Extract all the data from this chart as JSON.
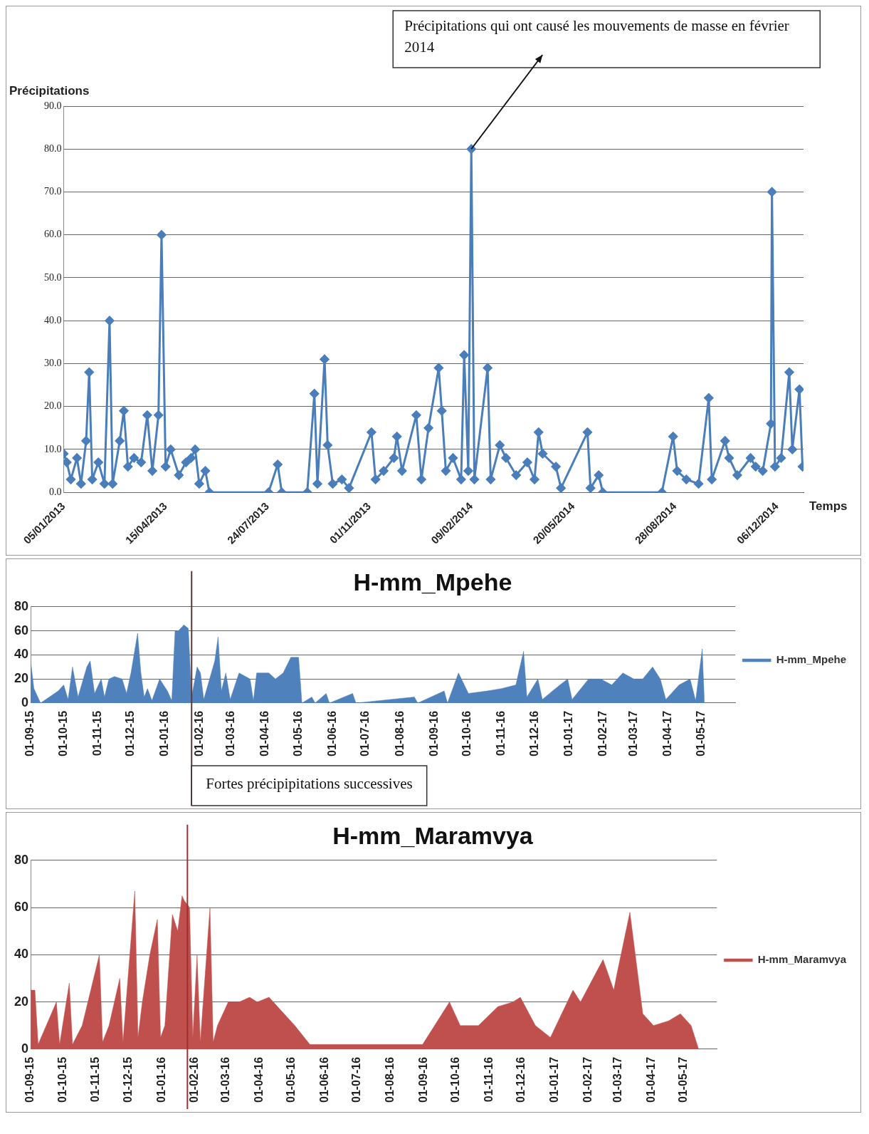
{
  "chart_data": [
    {
      "type": "line",
      "ylabel": "Précipitations",
      "xlabel": "Temps",
      "marker": "diamond",
      "grid": "y",
      "legend": false,
      "annotations": [
        {
          "text": "Précipitations qui ont causé les mouvements de masse en février 2014",
          "x": "2014-02-09",
          "y": 80
        }
      ],
      "xlim": [
        "2013-01-05",
        "2015-01-01"
      ],
      "xticks": [
        {
          "value": "2013-01-05",
          "label": "05/01/2013"
        },
        {
          "value": "2013-04-15",
          "label": "15/04/2013"
        },
        {
          "value": "2013-07-24",
          "label": "24/07/2013"
        },
        {
          "value": "2013-11-01",
          "label": "01/11/2013"
        },
        {
          "value": "2014-02-09",
          "label": "09/02/2014"
        },
        {
          "value": "2014-05-20",
          "label": "20/05/2014"
        },
        {
          "value": "2014-08-28",
          "label": "28/08/2014"
        },
        {
          "value": "2014-12-06",
          "label": "06/12/2014"
        }
      ],
      "ylim": [
        0,
        90
      ],
      "yticks": [
        {
          "value": 0,
          "label": "0.0"
        },
        {
          "value": 10,
          "label": "10.0"
        },
        {
          "value": 20,
          "label": "20.0"
        },
        {
          "value": 30,
          "label": "30.0"
        },
        {
          "value": 40,
          "label": "40.0"
        },
        {
          "value": 50,
          "label": "50.0"
        },
        {
          "value": 60,
          "label": "60.0"
        },
        {
          "value": 70,
          "label": "70.0"
        },
        {
          "value": 80,
          "label": "80.0"
        },
        {
          "value": 90,
          "label": "90.0"
        }
      ],
      "series": [
        {
          "color": "#4a7ebb",
          "x": [
            "2013-01-05",
            "2013-01-08",
            "2013-01-12",
            "2013-01-18",
            "2013-01-22",
            "2013-01-27",
            "2013-01-30",
            "2013-02-02",
            "2013-02-08",
            "2013-02-14",
            "2013-02-19",
            "2013-02-22",
            "2013-03-01",
            "2013-03-05",
            "2013-03-09",
            "2013-03-15",
            "2013-03-22",
            "2013-03-28",
            "2013-04-02",
            "2013-04-08",
            "2013-04-11",
            "2013-04-15",
            "2013-04-20",
            "2013-04-28",
            "2013-05-05",
            "2013-05-10",
            "2013-05-14",
            "2013-05-18",
            "2013-05-24",
            "2013-05-28",
            "2013-07-25",
            "2013-08-03",
            "2013-08-07",
            "2013-09-01",
            "2013-09-08",
            "2013-09-11",
            "2013-09-18",
            "2013-09-21",
            "2013-09-26",
            "2013-10-05",
            "2013-10-12",
            "2013-11-03",
            "2013-11-07",
            "2013-11-15",
            "2013-11-25",
            "2013-11-28",
            "2013-12-03",
            "2013-12-17",
            "2013-12-22",
            "2013-12-29",
            "2014-01-08",
            "2014-01-11",
            "2014-01-15",
            "2014-01-22",
            "2014-01-30",
            "2014-02-02",
            "2014-02-06",
            "2014-02-09",
            "2014-02-12",
            "2014-02-25",
            "2014-02-28",
            "2014-03-09",
            "2014-03-15",
            "2014-03-25",
            "2014-04-05",
            "2014-04-12",
            "2014-04-16",
            "2014-04-20",
            "2014-05-03",
            "2014-05-08",
            "2014-06-03",
            "2014-06-06",
            "2014-06-14",
            "2014-06-18",
            "2014-08-15",
            "2014-08-26",
            "2014-08-30",
            "2014-09-08",
            "2014-09-20",
            "2014-09-30",
            "2014-10-03",
            "2014-10-16",
            "2014-10-20",
            "2014-10-28",
            "2014-11-10",
            "2014-11-15",
            "2014-11-22",
            "2014-11-30",
            "2014-12-01",
            "2014-12-04",
            "2014-12-10",
            "2014-12-18",
            "2014-12-21",
            "2014-12-28",
            "2014-12-31"
          ],
          "values": [
            9,
            7,
            3,
            8,
            2,
            12,
            28,
            3,
            7,
            2,
            40,
            2,
            12,
            19,
            6,
            8,
            7,
            18,
            5,
            18,
            60,
            6,
            10,
            4,
            7,
            8,
            10,
            2,
            5,
            0,
            0,
            6.5,
            0,
            0,
            23,
            2,
            31,
            11,
            2,
            3,
            1,
            14,
            3,
            5,
            8,
            13,
            5,
            18,
            3,
            15,
            29,
            19,
            5,
            8,
            3,
            32,
            5,
            80,
            3,
            29,
            3,
            11,
            8,
            4,
            7,
            3,
            14,
            9,
            6,
            1,
            14,
            1,
            4,
            0,
            0,
            13,
            5,
            3,
            2,
            22,
            3,
            12,
            8,
            4,
            8,
            6,
            5,
            16,
            70,
            6,
            8,
            28,
            10,
            24,
            6
          ]
        }
      ]
    },
    {
      "type": "area",
      "title": "H-mm_Mpehe",
      "grid": "y",
      "legend": "right",
      "annotations": [
        "Fortes précipipitations successives"
      ],
      "ref_lines": [
        {
          "axis": "x",
          "value": "2016-01-25",
          "color": "#5a3a3a"
        }
      ],
      "xlim": [
        "2015-09-01",
        "2017-06-01"
      ],
      "xticks": [
        {
          "value": "2015-09-01",
          "label": "01-09-15"
        },
        {
          "value": "2015-10-01",
          "label": "01-10-15"
        },
        {
          "value": "2015-11-01",
          "label": "01-11-15"
        },
        {
          "value": "2015-12-01",
          "label": "01-12-15"
        },
        {
          "value": "2016-01-01",
          "label": "01-01-16"
        },
        {
          "value": "2016-02-01",
          "label": "01-02-16"
        },
        {
          "value": "2016-03-01",
          "label": "01-03-16"
        },
        {
          "value": "2016-04-01",
          "label": "01-04-16"
        },
        {
          "value": "2016-05-01",
          "label": "01-05-16"
        },
        {
          "value": "2016-06-01",
          "label": "01-06-16"
        },
        {
          "value": "2016-07-01",
          "label": "01-07-16"
        },
        {
          "value": "2016-08-01",
          "label": "01-08-16"
        },
        {
          "value": "2016-09-01",
          "label": "01-09-16"
        },
        {
          "value": "2016-10-01",
          "label": "01-10-16"
        },
        {
          "value": "2016-11-01",
          "label": "01-11-16"
        },
        {
          "value": "2016-12-01",
          "label": "01-12-16"
        },
        {
          "value": "2017-01-01",
          "label": "01-01-17"
        },
        {
          "value": "2017-02-01",
          "label": "01-02-17"
        },
        {
          "value": "2017-03-01",
          "label": "01-03-17"
        },
        {
          "value": "2017-04-01",
          "label": "01-04-17"
        },
        {
          "value": "2017-05-01",
          "label": "01-05-17"
        }
      ],
      "ylim": [
        0,
        80
      ],
      "yticks": [
        0,
        20,
        40,
        60,
        80
      ],
      "series": [
        {
          "name": "H-mm_Mpehe",
          "color": "#4f81bd",
          "x": [
            "2015-09-01",
            "2015-09-04",
            "2015-09-10",
            "2015-09-26",
            "2015-10-01",
            "2015-10-05",
            "2015-10-09",
            "2015-10-14",
            "2015-10-22",
            "2015-10-25",
            "2015-10-29",
            "2015-11-04",
            "2015-11-07",
            "2015-11-11",
            "2015-11-16",
            "2015-11-23",
            "2015-11-27",
            "2015-12-01",
            "2015-12-07",
            "2015-12-10",
            "2015-12-13",
            "2015-12-16",
            "2015-12-20",
            "2015-12-27",
            "2016-01-03",
            "2016-01-07",
            "2016-01-10",
            "2016-01-13",
            "2016-01-18",
            "2016-01-22",
            "2016-01-25",
            "2016-01-30",
            "2016-02-02",
            "2016-02-05",
            "2016-02-15",
            "2016-02-18",
            "2016-02-21",
            "2016-02-25",
            "2016-02-29",
            "2016-03-08",
            "2016-03-18",
            "2016-03-21",
            "2016-03-24",
            "2016-04-04",
            "2016-04-10",
            "2016-04-17",
            "2016-04-24",
            "2016-05-01",
            "2016-05-04",
            "2016-05-13",
            "2016-05-16",
            "2016-05-26",
            "2016-05-29",
            "2016-06-19",
            "2016-06-22",
            "2016-08-14",
            "2016-08-17",
            "2016-09-10",
            "2016-09-13",
            "2016-09-23",
            "2016-10-02",
            "2016-10-19",
            "2016-11-01",
            "2016-11-14",
            "2016-11-21",
            "2016-11-24",
            "2016-12-04",
            "2016-12-08",
            "2016-12-24",
            "2016-12-31",
            "2017-01-04",
            "2017-01-19",
            "2017-01-30",
            "2017-02-09",
            "2017-02-19",
            "2017-03-01",
            "2017-03-09",
            "2017-03-18",
            "2017-03-25",
            "2017-03-30",
            "2017-04-11",
            "2017-04-21",
            "2017-04-26",
            "2017-05-02",
            "2017-05-04"
          ],
          "values": [
            35,
            12,
            0,
            10,
            15,
            3,
            30,
            5,
            30,
            35,
            8,
            20,
            5,
            20,
            22,
            20,
            8,
            25,
            58,
            25,
            5,
            12,
            2,
            20,
            10,
            2,
            60,
            60,
            65,
            62,
            5,
            30,
            25,
            3,
            35,
            55,
            10,
            25,
            3,
            25,
            20,
            2,
            25,
            25,
            20,
            25,
            38,
            38,
            0,
            5,
            0,
            8,
            0,
            8,
            0,
            5,
            0,
            10,
            0,
            25,
            8,
            10,
            12,
            15,
            43,
            5,
            20,
            3,
            15,
            20,
            3,
            20,
            20,
            15,
            25,
            20,
            20,
            30,
            20,
            3,
            15,
            20,
            2,
            45,
            0
          ]
        }
      ]
    },
    {
      "type": "area",
      "title": "H-mm_Maramvya",
      "grid": "y",
      "legend": "right",
      "ref_lines": [
        {
          "axis": "x",
          "value": "2016-01-25",
          "color": "#a03030"
        }
      ],
      "xlim": [
        "2015-09-01",
        "2017-06-01"
      ],
      "xticks": [
        {
          "value": "2015-09-01",
          "label": "01-09-15"
        },
        {
          "value": "2015-10-01",
          "label": "01-10-15"
        },
        {
          "value": "2015-11-01",
          "label": "01-11-15"
        },
        {
          "value": "2015-12-01",
          "label": "01-12-15"
        },
        {
          "value": "2016-01-01",
          "label": "01-01-16"
        },
        {
          "value": "2016-02-01",
          "label": "01-02-16"
        },
        {
          "value": "2016-03-01",
          "label": "01-03-16"
        },
        {
          "value": "2016-04-01",
          "label": "01-04-16"
        },
        {
          "value": "2016-05-01",
          "label": "01-05-16"
        },
        {
          "value": "2016-06-01",
          "label": "01-06-16"
        },
        {
          "value": "2016-07-01",
          "label": "01-07-16"
        },
        {
          "value": "2016-08-01",
          "label": "01-08-16"
        },
        {
          "value": "2016-09-01",
          "label": "01-09-16"
        },
        {
          "value": "2016-10-01",
          "label": "01-10-16"
        },
        {
          "value": "2016-11-01",
          "label": "01-11-16"
        },
        {
          "value": "2016-12-01",
          "label": "01-12-16"
        },
        {
          "value": "2017-01-01",
          "label": "01-01-17"
        },
        {
          "value": "2017-02-01",
          "label": "01-02-17"
        },
        {
          "value": "2017-03-01",
          "label": "01-03-17"
        },
        {
          "value": "2017-04-01",
          "label": "01-04-17"
        },
        {
          "value": "2017-05-01",
          "label": "01-05-17"
        }
      ],
      "ylim": [
        0,
        80
      ],
      "yticks": [
        0,
        20,
        40,
        60,
        80
      ],
      "series": [
        {
          "name": "H-mm_Maramvya",
          "color": "#c0504d",
          "x": [
            "2015-09-01",
            "2015-09-05",
            "2015-09-08",
            "2015-09-25",
            "2015-09-28",
            "2015-10-07",
            "2015-10-10",
            "2015-10-19",
            "2015-11-04",
            "2015-11-07",
            "2015-11-13",
            "2015-11-23",
            "2015-11-26",
            "2015-12-07",
            "2015-12-10",
            "2015-12-14",
            "2015-12-21",
            "2015-12-28",
            "2015-12-31",
            "2016-01-04",
            "2016-01-11",
            "2016-01-16",
            "2016-01-20",
            "2016-01-22",
            "2016-01-27",
            "2016-01-30",
            "2016-02-03",
            "2016-02-06",
            "2016-02-15",
            "2016-02-18",
            "2016-02-22",
            "2016-03-03",
            "2016-03-13",
            "2016-03-23",
            "2016-03-30",
            "2016-04-10",
            "2016-04-24",
            "2016-05-04",
            "2016-05-18",
            "2016-08-31",
            "2016-09-25",
            "2016-10-05",
            "2016-10-22",
            "2016-11-09",
            "2016-11-23",
            "2016-11-30",
            "2016-12-14",
            "2016-12-28",
            "2017-01-18",
            "2017-01-25",
            "2017-02-15",
            "2017-02-25",
            "2017-02-28",
            "2017-03-12",
            "2017-03-24",
            "2017-04-03",
            "2017-04-17",
            "2017-04-28",
            "2017-05-08",
            "2017-05-15"
          ],
          "values": [
            25,
            25,
            2,
            20,
            2,
            28,
            2,
            10,
            40,
            3,
            10,
            30,
            3,
            67,
            5,
            20,
            40,
            55,
            5,
            10,
            57,
            50,
            65,
            63,
            60,
            5,
            40,
            3,
            60,
            3,
            10,
            20,
            20,
            22,
            20,
            22,
            15,
            10,
            2,
            2,
            20,
            10,
            10,
            18,
            20,
            22,
            10,
            5,
            25,
            20,
            38,
            25,
            32,
            58,
            15,
            10,
            12,
            15,
            10,
            0
          ]
        }
      ]
    }
  ]
}
